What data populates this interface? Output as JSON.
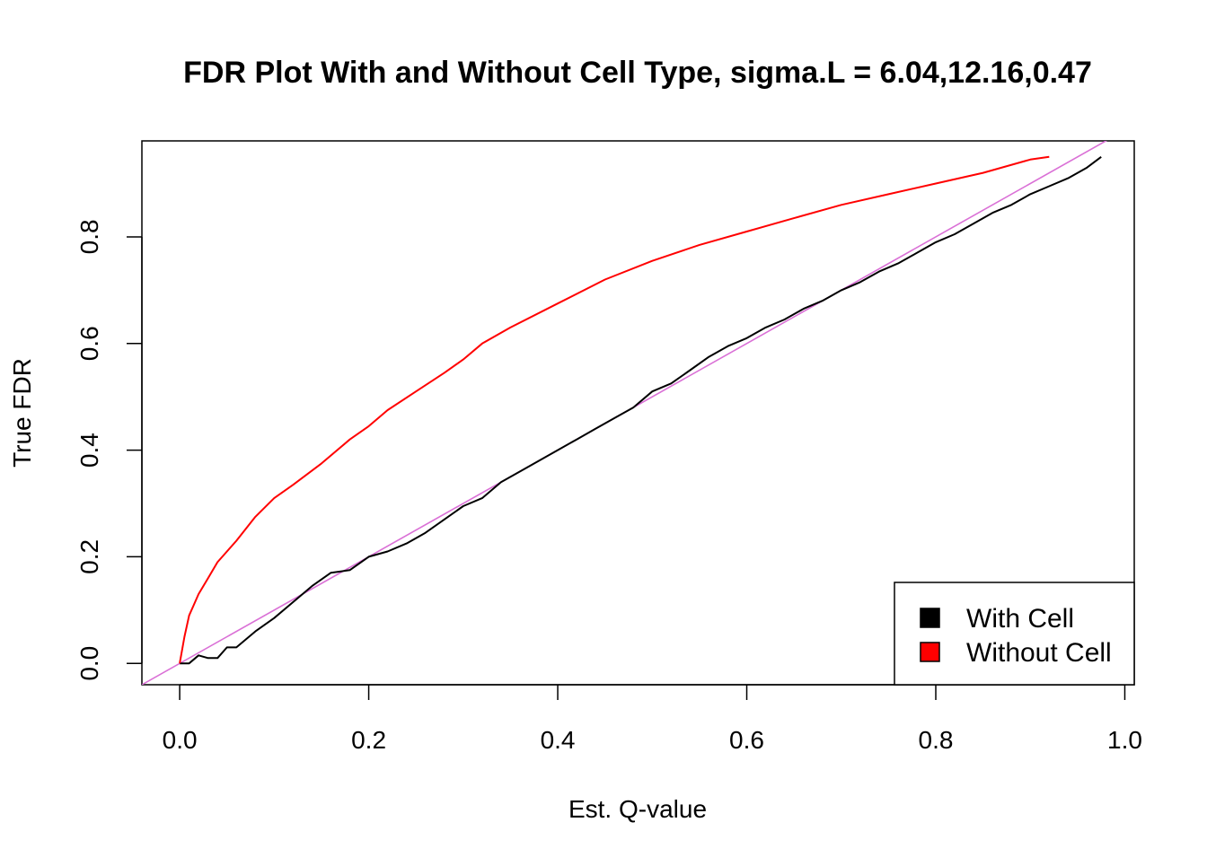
{
  "chart_data": {
    "type": "line",
    "title": "FDR Plot With and Without Cell Type, sigma.L = 6.04,12.16,0.47",
    "xlabel": "Est. Q-value",
    "ylabel": "True FDR",
    "xlim": [
      -0.04,
      1.01
    ],
    "ylim": [
      -0.04,
      0.98
    ],
    "x_ticks": [
      0.0,
      0.2,
      0.4,
      0.6,
      0.8,
      1.0
    ],
    "x_tick_labels": [
      "0.0",
      "0.2",
      "0.4",
      "0.6",
      "0.8",
      "1.0"
    ],
    "y_ticks": [
      0.0,
      0.2,
      0.4,
      0.6,
      0.8
    ],
    "y_tick_labels": [
      "0.0",
      "0.2",
      "0.4",
      "0.6",
      "0.8"
    ],
    "grid": false,
    "legend_position": "bottom-right",
    "reference_line": {
      "kind": "identity",
      "slope": 1,
      "intercept": 0,
      "color": "#DA70D6"
    },
    "series": [
      {
        "name": "With Cell",
        "color": "#000000",
        "x": [
          0.0,
          0.01,
          0.02,
          0.03,
          0.04,
          0.05,
          0.06,
          0.08,
          0.1,
          0.12,
          0.14,
          0.16,
          0.18,
          0.2,
          0.22,
          0.24,
          0.26,
          0.28,
          0.3,
          0.32,
          0.34,
          0.36,
          0.38,
          0.4,
          0.42,
          0.44,
          0.46,
          0.48,
          0.5,
          0.52,
          0.54,
          0.56,
          0.58,
          0.6,
          0.62,
          0.64,
          0.66,
          0.68,
          0.7,
          0.72,
          0.74,
          0.76,
          0.78,
          0.8,
          0.82,
          0.84,
          0.86,
          0.88,
          0.9,
          0.92,
          0.94,
          0.96,
          0.975
        ],
        "y": [
          0.0,
          0.0,
          0.015,
          0.01,
          0.01,
          0.03,
          0.03,
          0.06,
          0.085,
          0.115,
          0.145,
          0.17,
          0.175,
          0.2,
          0.21,
          0.225,
          0.245,
          0.27,
          0.295,
          0.31,
          0.34,
          0.36,
          0.38,
          0.4,
          0.42,
          0.44,
          0.46,
          0.48,
          0.51,
          0.525,
          0.55,
          0.575,
          0.595,
          0.61,
          0.63,
          0.645,
          0.665,
          0.68,
          0.7,
          0.715,
          0.735,
          0.75,
          0.77,
          0.79,
          0.805,
          0.825,
          0.845,
          0.86,
          0.88,
          0.895,
          0.91,
          0.93,
          0.95
        ]
      },
      {
        "name": "Without Cell",
        "color": "#FF0000",
        "x": [
          0.0,
          0.002,
          0.005,
          0.01,
          0.015,
          0.02,
          0.03,
          0.04,
          0.05,
          0.06,
          0.08,
          0.1,
          0.12,
          0.15,
          0.18,
          0.2,
          0.22,
          0.25,
          0.28,
          0.3,
          0.32,
          0.35,
          0.4,
          0.45,
          0.5,
          0.55,
          0.6,
          0.65,
          0.7,
          0.75,
          0.8,
          0.85,
          0.9,
          0.92
        ],
        "y": [
          0.0,
          0.02,
          0.05,
          0.09,
          0.11,
          0.13,
          0.16,
          0.19,
          0.21,
          0.23,
          0.275,
          0.31,
          0.335,
          0.375,
          0.42,
          0.445,
          0.475,
          0.51,
          0.545,
          0.57,
          0.6,
          0.63,
          0.675,
          0.72,
          0.755,
          0.785,
          0.81,
          0.835,
          0.86,
          0.88,
          0.9,
          0.92,
          0.945,
          0.95
        ]
      }
    ]
  }
}
